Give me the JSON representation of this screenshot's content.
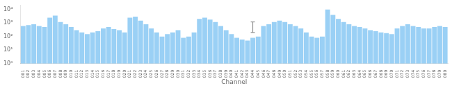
{
  "chart_data": {
    "type": "bar",
    "xlabel": "Channel",
    "categories": [
      "001",
      "002",
      "003",
      "004",
      "005",
      "006",
      "007",
      "008",
      "009",
      "010",
      "011",
      "012",
      "013",
      "014",
      "015",
      "016",
      "017",
      "018",
      "019",
      "020",
      "021",
      "022",
      "023",
      "024",
      "025",
      "026",
      "027",
      "028",
      "029",
      "030",
      "031",
      "032",
      "033",
      "034",
      "035",
      "036",
      "037",
      "038",
      "039",
      "040",
      "041",
      "042",
      "043",
      "044",
      "045",
      "046",
      "047",
      "048",
      "049",
      "050",
      "051",
      "052",
      "053",
      "054",
      "055",
      "056",
      "057",
      "058",
      "059",
      "060",
      "061",
      "062",
      "063",
      "064",
      "065",
      "066",
      "067",
      "068",
      "069",
      "070",
      "071",
      "072",
      "073",
      "074",
      "075",
      "076",
      "077",
      "078",
      "079",
      "080"
    ],
    "values": [
      600,
      700,
      800,
      600,
      500,
      2500,
      3500,
      1200,
      800,
      500,
      300,
      200,
      150,
      200,
      250,
      400,
      500,
      350,
      300,
      200,
      2500,
      3000,
      1500,
      800,
      400,
      200,
      100,
      150,
      200,
      300,
      80,
      100,
      200,
      2000,
      2500,
      1800,
      1200,
      600,
      300,
      150,
      80,
      60,
      50,
      80,
      100,
      600,
      800,
      1200,
      1500,
      1200,
      800,
      600,
      400,
      200,
      100,
      80,
      100,
      10000,
      4000,
      2000,
      1200,
      800,
      600,
      500,
      400,
      300,
      250,
      200,
      180,
      150,
      400,
      600,
      800,
      600,
      500,
      400,
      400,
      500,
      600,
      500
    ],
    "log": "y",
    "ylim": [
      1,
      20000
    ],
    "yticks": [
      {
        "value": 1,
        "label": "10⁰"
      },
      {
        "value": 10,
        "label": "10¹"
      },
      {
        "value": 100,
        "label": "10²"
      },
      {
        "value": 1000,
        "label": "10³"
      },
      {
        "value": 10000,
        "label": "10⁴"
      }
    ],
    "error_bar": {
      "category": "044",
      "value": 700,
      "yerr": 500,
      "color": "#808080"
    },
    "grid": false
  }
}
